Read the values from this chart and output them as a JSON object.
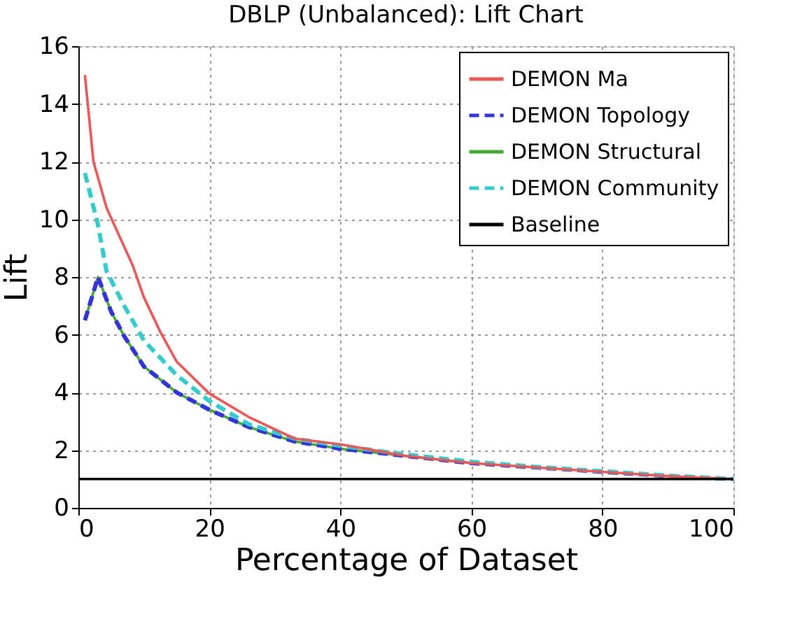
{
  "chart_data": {
    "type": "line",
    "title": "DBLP (Unbalanced): Lift Chart",
    "xlabel": "Percentage of Dataset",
    "ylabel": "Lift",
    "xlim": [
      0,
      100
    ],
    "xticks": [
      0,
      20,
      40,
      60,
      80,
      100
    ],
    "ylim": [
      0,
      16
    ],
    "yticks": [
      0,
      2,
      4,
      6,
      8,
      10,
      12,
      14,
      16
    ],
    "grid": true,
    "legend": "top right",
    "series": [
      {
        "name": "DEMON Ma",
        "color": "#ee5555",
        "line_style": "solid",
        "x": [
          1,
          2.3,
          4.3,
          7,
          8.3,
          10,
          12.5,
          15,
          20,
          26,
          33,
          40,
          50,
          60,
          70,
          80,
          90,
          100
        ],
        "values": [
          15,
          12,
          10.4,
          9.05,
          8.4,
          7.3,
          6.1,
          5.07,
          3.96,
          3.15,
          2.4,
          2.2,
          1.8,
          1.55,
          1.4,
          1.25,
          1.1,
          1
        ]
      },
      {
        "name": "DEMON Topology",
        "color": "#3333dd",
        "line_style": "dashed",
        "x": [
          1,
          3,
          5,
          7,
          10,
          15,
          20,
          26,
          33,
          40,
          50,
          60,
          70,
          80,
          90,
          100
        ],
        "values": [
          6.5,
          8,
          6.8,
          5.95,
          4.9,
          4,
          3.4,
          2.8,
          2.3,
          2.05,
          1.8,
          1.55,
          1.4,
          1.25,
          1.1,
          1
        ]
      },
      {
        "name": "DEMON Structural",
        "color": "#44aa33",
        "line_style": "solid",
        "x": [
          1,
          3,
          5,
          7,
          10,
          15,
          20,
          26,
          33,
          40,
          50,
          60
        ],
        "values": [
          6.5,
          8,
          6.8,
          5.95,
          4.9,
          4,
          3.4,
          2.8,
          2.3,
          2.05,
          1.8,
          1.55
        ]
      },
      {
        "name": "DEMON Community",
        "color": "#33cccc",
        "line_style": "dashed",
        "x": [
          1,
          3,
          4.3,
          7,
          10,
          15,
          20,
          26,
          33,
          40,
          50,
          60,
          70,
          80,
          90,
          100
        ],
        "values": [
          11.6,
          9.8,
          8.2,
          7,
          5.8,
          4.6,
          3.7,
          2.9,
          2.4,
          2.15,
          1.85,
          1.6,
          1.42,
          1.27,
          1.12,
          1
        ]
      },
      {
        "name": "Baseline",
        "color": "#000000",
        "line_style": "solid",
        "x": [
          0,
          100
        ],
        "values": [
          1,
          1
        ]
      }
    ]
  }
}
